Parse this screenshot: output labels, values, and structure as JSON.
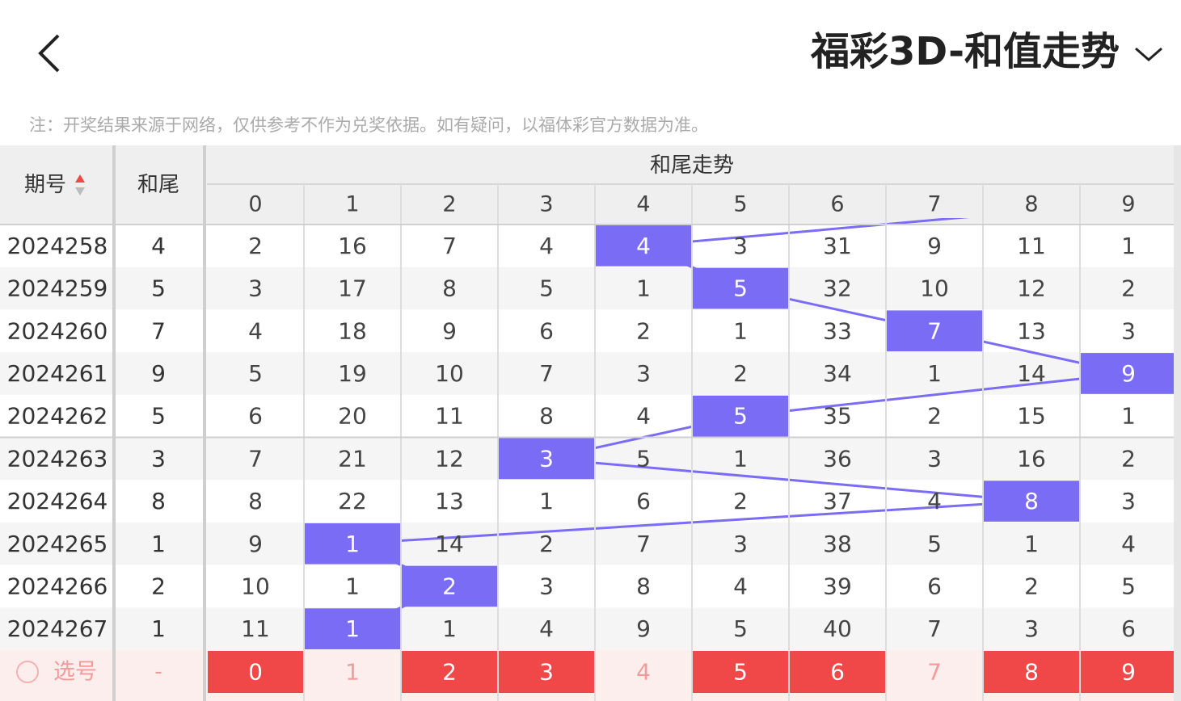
{
  "header": {
    "title": "福彩3D-和值走势"
  },
  "note": "注：开奖结果来源于网络，仅供参考不作为兑奖依据。如有疑问，以福体彩官方数据为准。",
  "table": {
    "columns": {
      "period": "期号",
      "tail": "和尾",
      "trend": "和尾走势",
      "digits": [
        "0",
        "1",
        "2",
        "3",
        "4",
        "5",
        "6",
        "7",
        "8",
        "9"
      ]
    },
    "rows": [
      {
        "period": "2024258",
        "tail": "4",
        "values": [
          "2",
          "16",
          "7",
          "4",
          "4",
          "3",
          "31",
          "9",
          "11",
          "1"
        ]
      },
      {
        "period": "2024259",
        "tail": "5",
        "values": [
          "3",
          "17",
          "8",
          "5",
          "1",
          "5",
          "32",
          "10",
          "12",
          "2"
        ]
      },
      {
        "period": "2024260",
        "tail": "7",
        "values": [
          "4",
          "18",
          "9",
          "6",
          "2",
          "1",
          "33",
          "7",
          "13",
          "3"
        ]
      },
      {
        "period": "2024261",
        "tail": "9",
        "values": [
          "5",
          "19",
          "10",
          "7",
          "3",
          "2",
          "34",
          "1",
          "14",
          "9"
        ]
      },
      {
        "period": "2024262",
        "tail": "5",
        "values": [
          "6",
          "20",
          "11",
          "8",
          "4",
          "5",
          "35",
          "2",
          "15",
          "1"
        ]
      },
      {
        "period": "2024263",
        "tail": "3",
        "values": [
          "7",
          "21",
          "12",
          "3",
          "5",
          "1",
          "36",
          "3",
          "16",
          "2"
        ]
      },
      {
        "period": "2024264",
        "tail": "8",
        "values": [
          "8",
          "22",
          "13",
          "1",
          "6",
          "2",
          "37",
          "4",
          "8",
          "3"
        ]
      },
      {
        "period": "2024265",
        "tail": "1",
        "values": [
          "9",
          "1",
          "14",
          "2",
          "7",
          "3",
          "38",
          "5",
          "1",
          "4"
        ]
      },
      {
        "period": "2024266",
        "tail": "2",
        "values": [
          "10",
          "1",
          "2",
          "3",
          "8",
          "4",
          "39",
          "6",
          "2",
          "5"
        ]
      },
      {
        "period": "2024267",
        "tail": "1",
        "values": [
          "11",
          "1",
          "1",
          "4",
          "9",
          "5",
          "40",
          "7",
          "3",
          "6"
        ]
      }
    ],
    "footer": {
      "label": "选号",
      "tail": "-",
      "digits": [
        "0",
        "1",
        "2",
        "3",
        "4",
        "5",
        "6",
        "7",
        "8",
        "9"
      ],
      "selected": [
        true,
        false,
        true,
        true,
        false,
        true,
        true,
        false,
        true,
        true
      ]
    }
  }
}
